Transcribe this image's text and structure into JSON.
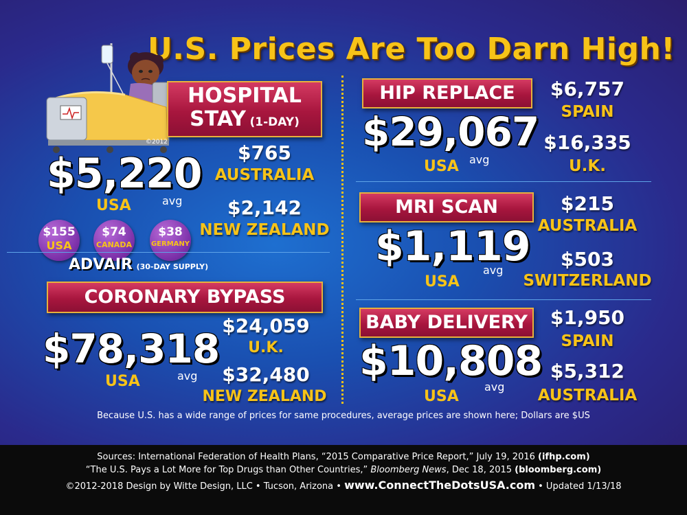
{
  "title": "U.S. Prices Are Too Darn High!",
  "copyright_small": "©2012",
  "usa_label": "USA",
  "avg_label": "avg",
  "hospital": {
    "label_line1": "HOSPITAL",
    "label_line2": "STAY",
    "label_suffix": "(1-DAY)",
    "usa_price": "$5,220",
    "comparisons": [
      {
        "price": "$765",
        "country": "AUSTRALIA"
      },
      {
        "price": "$2,142",
        "country": "NEW ZEALAND"
      }
    ]
  },
  "advair": {
    "label": "ADVAIR",
    "suffix": "(30-DAY SUPPLY)",
    "prices": [
      {
        "price": "$155",
        "country": "USA"
      },
      {
        "price": "$74",
        "country": "CANADA"
      },
      {
        "price": "$38",
        "country": "GERMANY"
      }
    ]
  },
  "bypass": {
    "label": "CORONARY BYPASS",
    "usa_price": "$78,318",
    "comparisons": [
      {
        "price": "$24,059",
        "country": "U.K."
      },
      {
        "price": "$32,480",
        "country": "NEW ZEALAND"
      }
    ]
  },
  "hip": {
    "label": "HIP REPLACE",
    "usa_price": "$29,067",
    "comparisons": [
      {
        "price": "$6,757",
        "country": "SPAIN"
      },
      {
        "price": "$16,335",
        "country": "U.K."
      }
    ]
  },
  "mri": {
    "label": "MRI SCAN",
    "usa_price": "$1,119",
    "comparisons": [
      {
        "price": "$215",
        "country": "AUSTRALIA"
      },
      {
        "price": "$503",
        "country": "SWITZERLAND"
      }
    ]
  },
  "baby": {
    "label": "BABY DELIVERY",
    "usa_price": "$10,808",
    "comparisons": [
      {
        "price": "$1,950",
        "country": "SPAIN"
      },
      {
        "price": "$5,312",
        "country": "AUSTRALIA"
      }
    ]
  },
  "note": "Because U.S. has a wide range of prices for same procedures, average prices are shown here; Dollars are $US",
  "footer": {
    "line1_a": "Sources: International Federation of Health Plans, “2015 Comparative Price Report,” July 19, 2016 ",
    "line1_b": "(ifhp.com)",
    "line2_a": "“The U.S. Pays a Lot More for Top Drugs than Other Countries,” ",
    "line2_b": "Bloomberg News",
    "line2_c": ", Dec 18, 2015 ",
    "line2_d": "(bloomberg.com)",
    "line3_a": "©2012-2018 Design by Witte Design, LLC • Tucson, Arizona • ",
    "line3_b": "www.ConnectTheDotsUSA.com",
    "line3_c": " • Updated 1/13/18"
  },
  "colors": {
    "accent_gold": "#f7c318",
    "label_red": "#a8163e",
    "bg_blue": "#1a4fb0"
  },
  "icons": [
    "hospital-bed-illustration",
    "iv-drip-icon",
    "heart-monitor-icon"
  ]
}
